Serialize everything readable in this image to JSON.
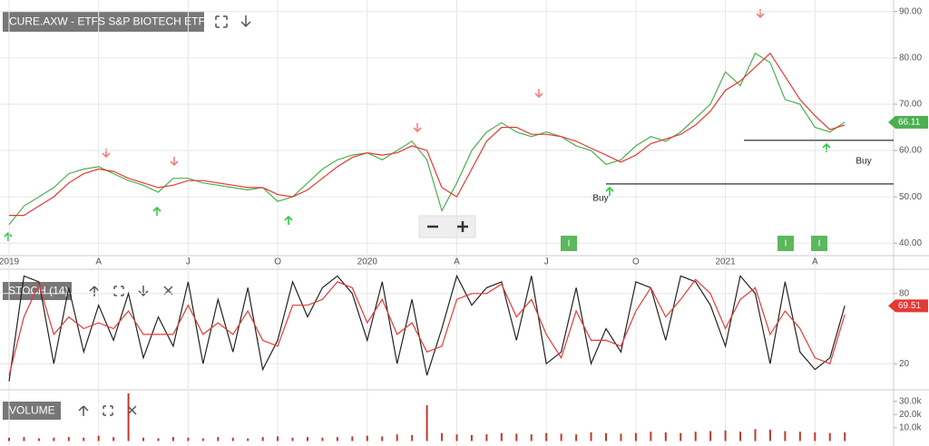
{
  "chart_data": [
    {
      "type": "line",
      "title": "CURE.AXW - ETFS S&P BIOTECH ETF",
      "categories": [
        "2019",
        null,
        null,
        null,
        null,
        null,
        "A",
        null,
        null,
        null,
        null,
        null,
        "J",
        null,
        null,
        null,
        null,
        null,
        "O",
        null,
        null,
        null,
        null,
        null,
        "2020",
        null,
        null,
        null,
        null,
        null,
        "A",
        null,
        null,
        null,
        null,
        null,
        "J",
        null,
        null,
        null,
        null,
        null,
        "O",
        null,
        null,
        null,
        null,
        null,
        "2021",
        null,
        null,
        null,
        null,
        null,
        "A",
        null,
        null
      ],
      "series": [
        {
          "color": "#4caf50",
          "values": [
            44,
            48,
            50,
            52,
            55,
            56,
            56.5,
            55,
            53.5,
            52.5,
            51,
            54,
            54,
            53,
            52.5,
            52,
            51.5,
            52,
            49,
            50,
            53,
            56,
            58,
            59,
            59.5,
            58,
            60,
            62,
            58,
            47,
            53,
            60,
            64,
            66,
            64,
            63,
            64,
            63,
            61,
            60,
            57,
            58,
            61,
            63,
            62,
            64,
            67,
            70,
            77,
            74,
            81,
            79,
            71,
            70,
            65,
            64,
            66.11
          ]
        },
        {
          "color": "#e53935",
          "values": [
            46,
            46,
            48,
            50,
            53,
            55,
            56,
            55.5,
            54,
            53,
            52,
            52.5,
            53.5,
            53.5,
            53,
            52.5,
            52,
            52,
            50.5,
            50,
            51.5,
            54,
            56.5,
            58.5,
            59.5,
            59,
            59.5,
            61,
            60,
            52,
            50,
            56,
            62,
            65,
            65,
            63.5,
            63.5,
            63,
            62,
            60.5,
            59,
            57.5,
            59,
            61.5,
            62.5,
            63.5,
            65.5,
            68.5,
            73,
            75,
            78,
            81,
            76,
            71,
            67.5,
            64.5,
            65.5
          ]
        }
      ],
      "ylim": [
        37.3,
        92.5
      ],
      "yticks": [
        {
          "value": 40,
          "label": "40.00"
        },
        {
          "value": 50,
          "label": "50.00"
        },
        {
          "value": 60,
          "label": "60.00"
        },
        {
          "value": 70,
          "label": "70.00"
        },
        {
          "value": 80,
          "label": "80.00"
        },
        {
          "value": 90,
          "label": "90.00"
        }
      ],
      "hlines": [
        52.8,
        62.2
      ],
      "annotations": [
        "Buy",
        "Buy"
      ],
      "event_labels": [
        "I",
        "I",
        "I"
      ],
      "grid": true
    },
    {
      "type": "line",
      "title": "STOCH (14)",
      "series": [
        {
          "color": "#222222",
          "values": [
            5,
            95,
            90,
            20,
            85,
            30,
            70,
            40,
            80,
            25,
            60,
            35,
            90,
            20,
            75,
            30,
            85,
            15,
            40,
            90,
            60,
            85,
            95,
            80,
            40,
            90,
            20,
            75,
            10,
            50,
            95,
            70,
            85,
            90,
            40,
            95,
            20,
            30,
            85,
            20,
            50,
            30,
            90,
            85,
            40,
            95,
            90,
            70,
            35,
            95,
            80,
            20,
            90,
            30,
            15,
            25,
            69.51
          ]
        },
        {
          "color": "#e53935",
          "values": [
            10,
            60,
            88,
            45,
            60,
            50,
            55,
            50,
            65,
            45,
            45,
            45,
            70,
            45,
            55,
            45,
            65,
            40,
            35,
            70,
            70,
            75,
            90,
            85,
            55,
            75,
            45,
            55,
            30,
            35,
            75,
            80,
            80,
            88,
            60,
            75,
            45,
            25,
            65,
            40,
            40,
            35,
            65,
            85,
            60,
            75,
            92,
            80,
            50,
            75,
            85,
            45,
            65,
            50,
            25,
            20,
            62.03
          ]
        }
      ],
      "ylim": [
        0,
        100
      ],
      "yticks": [
        20,
        80
      ],
      "grid": true
    },
    {
      "type": "bar",
      "title": "VOLUME",
      "color": "#c0392b",
      "values": [
        2500,
        3000,
        2000,
        2500,
        3000,
        2500,
        4000,
        3000,
        36000,
        2500,
        2000,
        3000,
        2500,
        2000,
        3000,
        2500,
        2000,
        3000,
        3500,
        2500,
        3000,
        2500,
        3000,
        3500,
        4000,
        3500,
        5000,
        4500,
        27000,
        6000,
        5000,
        4500,
        5000,
        6000,
        5500,
        5000,
        6000,
        5500,
        5000,
        6500,
        6000,
        5500,
        6000,
        7000,
        6500,
        6000,
        7000,
        7500,
        8000,
        7000,
        9000,
        8500,
        7500,
        7000,
        6500,
        6000,
        6500
      ],
      "ylim": [
        0,
        38000
      ],
      "yticks": [
        {
          "value": 10000,
          "label": "10.0k"
        },
        {
          "value": 20000,
          "label": "20.0k"
        },
        {
          "value": 30000,
          "label": "30.0k"
        }
      ]
    }
  ]
}
